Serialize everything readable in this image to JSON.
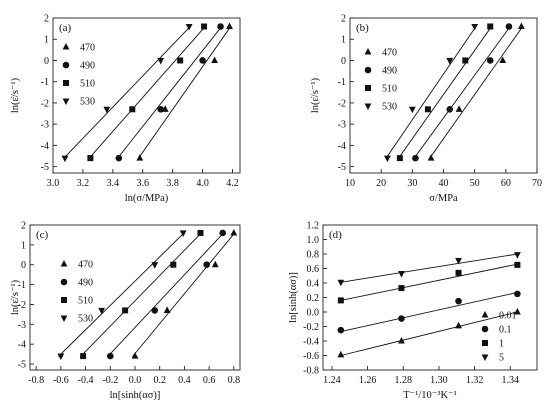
{
  "chart_data": [
    {
      "panel": "(a)",
      "type": "scatter",
      "xlabel": "ln(σ/MPa)",
      "ylabel": "ln(ε̇/s⁻¹)",
      "xlim": [
        3.0,
        4.25
      ],
      "ylim": [
        -5.3,
        2.0
      ],
      "x_ticks": [
        3.0,
        3.2,
        3.4,
        3.6,
        3.8,
        4.0,
        4.2
      ],
      "x_tick_labels": [
        "3.0",
        "3.2",
        "3.4",
        "3.6",
        "3.8",
        "4.0",
        "4.2"
      ],
      "y_ticks": [
        -5,
        -4,
        -3,
        -2,
        -1,
        0,
        1,
        2
      ],
      "y_tick_labels": [
        "-5",
        "-4",
        "-3",
        "-2",
        "-1",
        "0",
        "1",
        "2"
      ],
      "legend_position": "left",
      "series": [
        {
          "name": "470",
          "marker": "triangle-up",
          "x": [
            3.58,
            3.75,
            4.08,
            4.18
          ],
          "y": [
            -4.6,
            -2.3,
            0.0,
            1.6
          ],
          "fit": [
            [
              3.57,
              -4.62
            ],
            [
              4.19,
              1.62
            ]
          ]
        },
        {
          "name": "490",
          "marker": "circle",
          "x": [
            3.44,
            3.72,
            4.0,
            4.12
          ],
          "y": [
            -4.6,
            -2.3,
            0.0,
            1.6
          ],
          "fit": [
            [
              3.43,
              -4.62
            ],
            [
              4.13,
              1.62
            ]
          ]
        },
        {
          "name": "510",
          "marker": "square",
          "x": [
            3.25,
            3.53,
            3.85,
            4.01
          ],
          "y": [
            -4.6,
            -2.3,
            0.0,
            1.6
          ],
          "fit": [
            [
              3.24,
              -4.62
            ],
            [
              4.02,
              1.62
            ]
          ]
        },
        {
          "name": "530",
          "marker": "triangle-down",
          "x": [
            3.08,
            3.36,
            3.72,
            3.91
          ],
          "y": [
            -4.6,
            -2.3,
            0.0,
            1.6
          ],
          "fit": [
            [
              3.07,
              -4.62
            ],
            [
              3.92,
              1.62
            ]
          ]
        }
      ]
    },
    {
      "panel": "(b)",
      "type": "scatter",
      "xlabel": "σ/MPa",
      "ylabel": "ln(ε̇/s⁻¹)",
      "xlim": [
        10,
        70
      ],
      "ylim": [
        -5.3,
        2.0
      ],
      "x_ticks": [
        10,
        20,
        30,
        40,
        50,
        60,
        70
      ],
      "x_tick_labels": [
        "10",
        "20",
        "30",
        "40",
        "50",
        "60",
        "70"
      ],
      "y_ticks": [
        -5,
        -4,
        -3,
        -2,
        -1,
        0,
        1,
        2
      ],
      "y_tick_labels": [
        "-5",
        "-4",
        "-3",
        "-2",
        "-1",
        "0",
        "1",
        "2"
      ],
      "legend_position": "left",
      "series": [
        {
          "name": "470",
          "marker": "triangle-up",
          "x": [
            36,
            45,
            59,
            65
          ],
          "y": [
            -4.6,
            -2.3,
            0.0,
            1.6
          ],
          "fit": [
            [
              35.5,
              -4.62
            ],
            [
              65.5,
              1.62
            ]
          ]
        },
        {
          "name": "490",
          "marker": "circle",
          "x": [
            31,
            42,
            55,
            61
          ],
          "y": [
            -4.6,
            -2.3,
            0.0,
            1.6
          ],
          "fit": [
            [
              30.5,
              -4.62
            ],
            [
              61.5,
              1.62
            ]
          ]
        },
        {
          "name": "510",
          "marker": "square",
          "x": [
            26,
            35,
            47,
            55
          ],
          "y": [
            -4.6,
            -2.3,
            0.0,
            1.6
          ],
          "fit": [
            [
              25.5,
              -4.62
            ],
            [
              55.5,
              1.62
            ]
          ]
        },
        {
          "name": "530",
          "marker": "triangle-down",
          "x": [
            22,
            30,
            42,
            50
          ],
          "y": [
            -4.6,
            -2.3,
            0.0,
            1.6
          ],
          "fit": [
            [
              21.5,
              -4.62
            ],
            [
              50.5,
              1.62
            ]
          ]
        }
      ]
    },
    {
      "panel": "(c)",
      "type": "scatter",
      "xlabel": "ln[sinh(ασ)]",
      "ylabel": "ln(ε̇/s⁻¹)",
      "xlim": [
        -0.85,
        0.85
      ],
      "ylim": [
        -5.3,
        2.0
      ],
      "x_ticks": [
        -0.8,
        -0.6,
        -0.4,
        -0.2,
        0.0,
        0.2,
        0.4,
        0.6,
        0.8
      ],
      "x_tick_labels": [
        "-0.8",
        "-0.6",
        "-0.4",
        "-0.2",
        "0.0",
        "0.2",
        "0.4",
        "0.6",
        "0.8"
      ],
      "y_ticks": [
        -5,
        -4,
        -3,
        -2,
        -1,
        0,
        1,
        2
      ],
      "y_tick_labels": [
        "-5",
        "-4",
        "-3",
        "-2",
        "-1",
        "0",
        "1",
        "2"
      ],
      "legend_position": "left",
      "series": [
        {
          "name": "470",
          "marker": "triangle-up",
          "x": [
            0.0,
            0.26,
            0.65,
            0.8
          ],
          "y": [
            -4.6,
            -2.3,
            0.0,
            1.6
          ],
          "fit": [
            [
              -0.02,
              -4.62
            ],
            [
              0.81,
              1.62
            ]
          ]
        },
        {
          "name": "490",
          "marker": "circle",
          "x": [
            -0.2,
            0.16,
            0.58,
            0.71
          ],
          "y": [
            -4.6,
            -2.3,
            0.0,
            1.6
          ],
          "fit": [
            [
              -0.22,
              -4.62
            ],
            [
              0.72,
              1.62
            ]
          ]
        },
        {
          "name": "510",
          "marker": "square",
          "x": [
            -0.42,
            -0.08,
            0.31,
            0.53
          ],
          "y": [
            -4.6,
            -2.3,
            0.0,
            1.6
          ],
          "fit": [
            [
              -0.44,
              -4.62
            ],
            [
              0.54,
              1.62
            ]
          ]
        },
        {
          "name": "530",
          "marker": "triangle-down",
          "x": [
            -0.6,
            -0.27,
            0.16,
            0.39
          ],
          "y": [
            -4.6,
            -2.3,
            0.0,
            1.6
          ],
          "fit": [
            [
              -0.62,
              -4.62
            ],
            [
              0.4,
              1.62
            ]
          ]
        }
      ]
    },
    {
      "panel": "(d)",
      "type": "scatter",
      "xlabel": "T⁻¹/10⁻³K⁻¹",
      "ylabel": "ln[sinh(ασ)]",
      "xlim": [
        1.235,
        1.355
      ],
      "ylim": [
        -0.8,
        1.2
      ],
      "x_ticks": [
        1.24,
        1.26,
        1.28,
        1.3,
        1.32,
        1.34
      ],
      "x_tick_labels": [
        "1.24",
        "1.26",
        "1.28",
        "1.30",
        "1.32",
        "1.34"
      ],
      "y_ticks": [
        -0.8,
        -0.6,
        -0.4,
        -0.2,
        0.0,
        0.2,
        0.4,
        0.6,
        0.8,
        1.0,
        1.2
      ],
      "y_tick_labels": [
        "-0.8",
        "-0.6",
        "-0.4",
        "-0.2",
        "0.0",
        "0.2",
        "0.4",
        "0.6",
        "0.8",
        "1.0",
        "1.2"
      ],
      "legend_position": "bottom-right",
      "series": [
        {
          "name": "0.01",
          "marker": "triangle-up",
          "x": [
            1.245,
            1.279,
            1.311,
            1.344
          ],
          "y": [
            -0.59,
            -0.4,
            -0.19,
            0.0
          ],
          "fit": [
            [
              1.245,
              -0.6
            ],
            [
              1.344,
              0.0
            ]
          ]
        },
        {
          "name": "0.1",
          "marker": "circle",
          "x": [
            1.245,
            1.279,
            1.311,
            1.344
          ],
          "y": [
            -0.25,
            -0.09,
            0.15,
            0.25
          ],
          "fit": [
            [
              1.245,
              -0.27
            ],
            [
              1.344,
              0.27
            ]
          ]
        },
        {
          "name": "1",
          "marker": "square",
          "x": [
            1.245,
            1.279,
            1.311,
            1.344
          ],
          "y": [
            0.16,
            0.33,
            0.54,
            0.65
          ],
          "fit": [
            [
              1.245,
              0.16
            ],
            [
              1.344,
              0.66
            ]
          ]
        },
        {
          "name": "5",
          "marker": "triangle-down",
          "x": [
            1.245,
            1.279,
            1.311,
            1.344
          ],
          "y": [
            0.41,
            0.53,
            0.71,
            0.79
          ],
          "fit": [
            [
              1.245,
              0.41
            ],
            [
              1.344,
              0.8
            ]
          ]
        }
      ]
    }
  ]
}
